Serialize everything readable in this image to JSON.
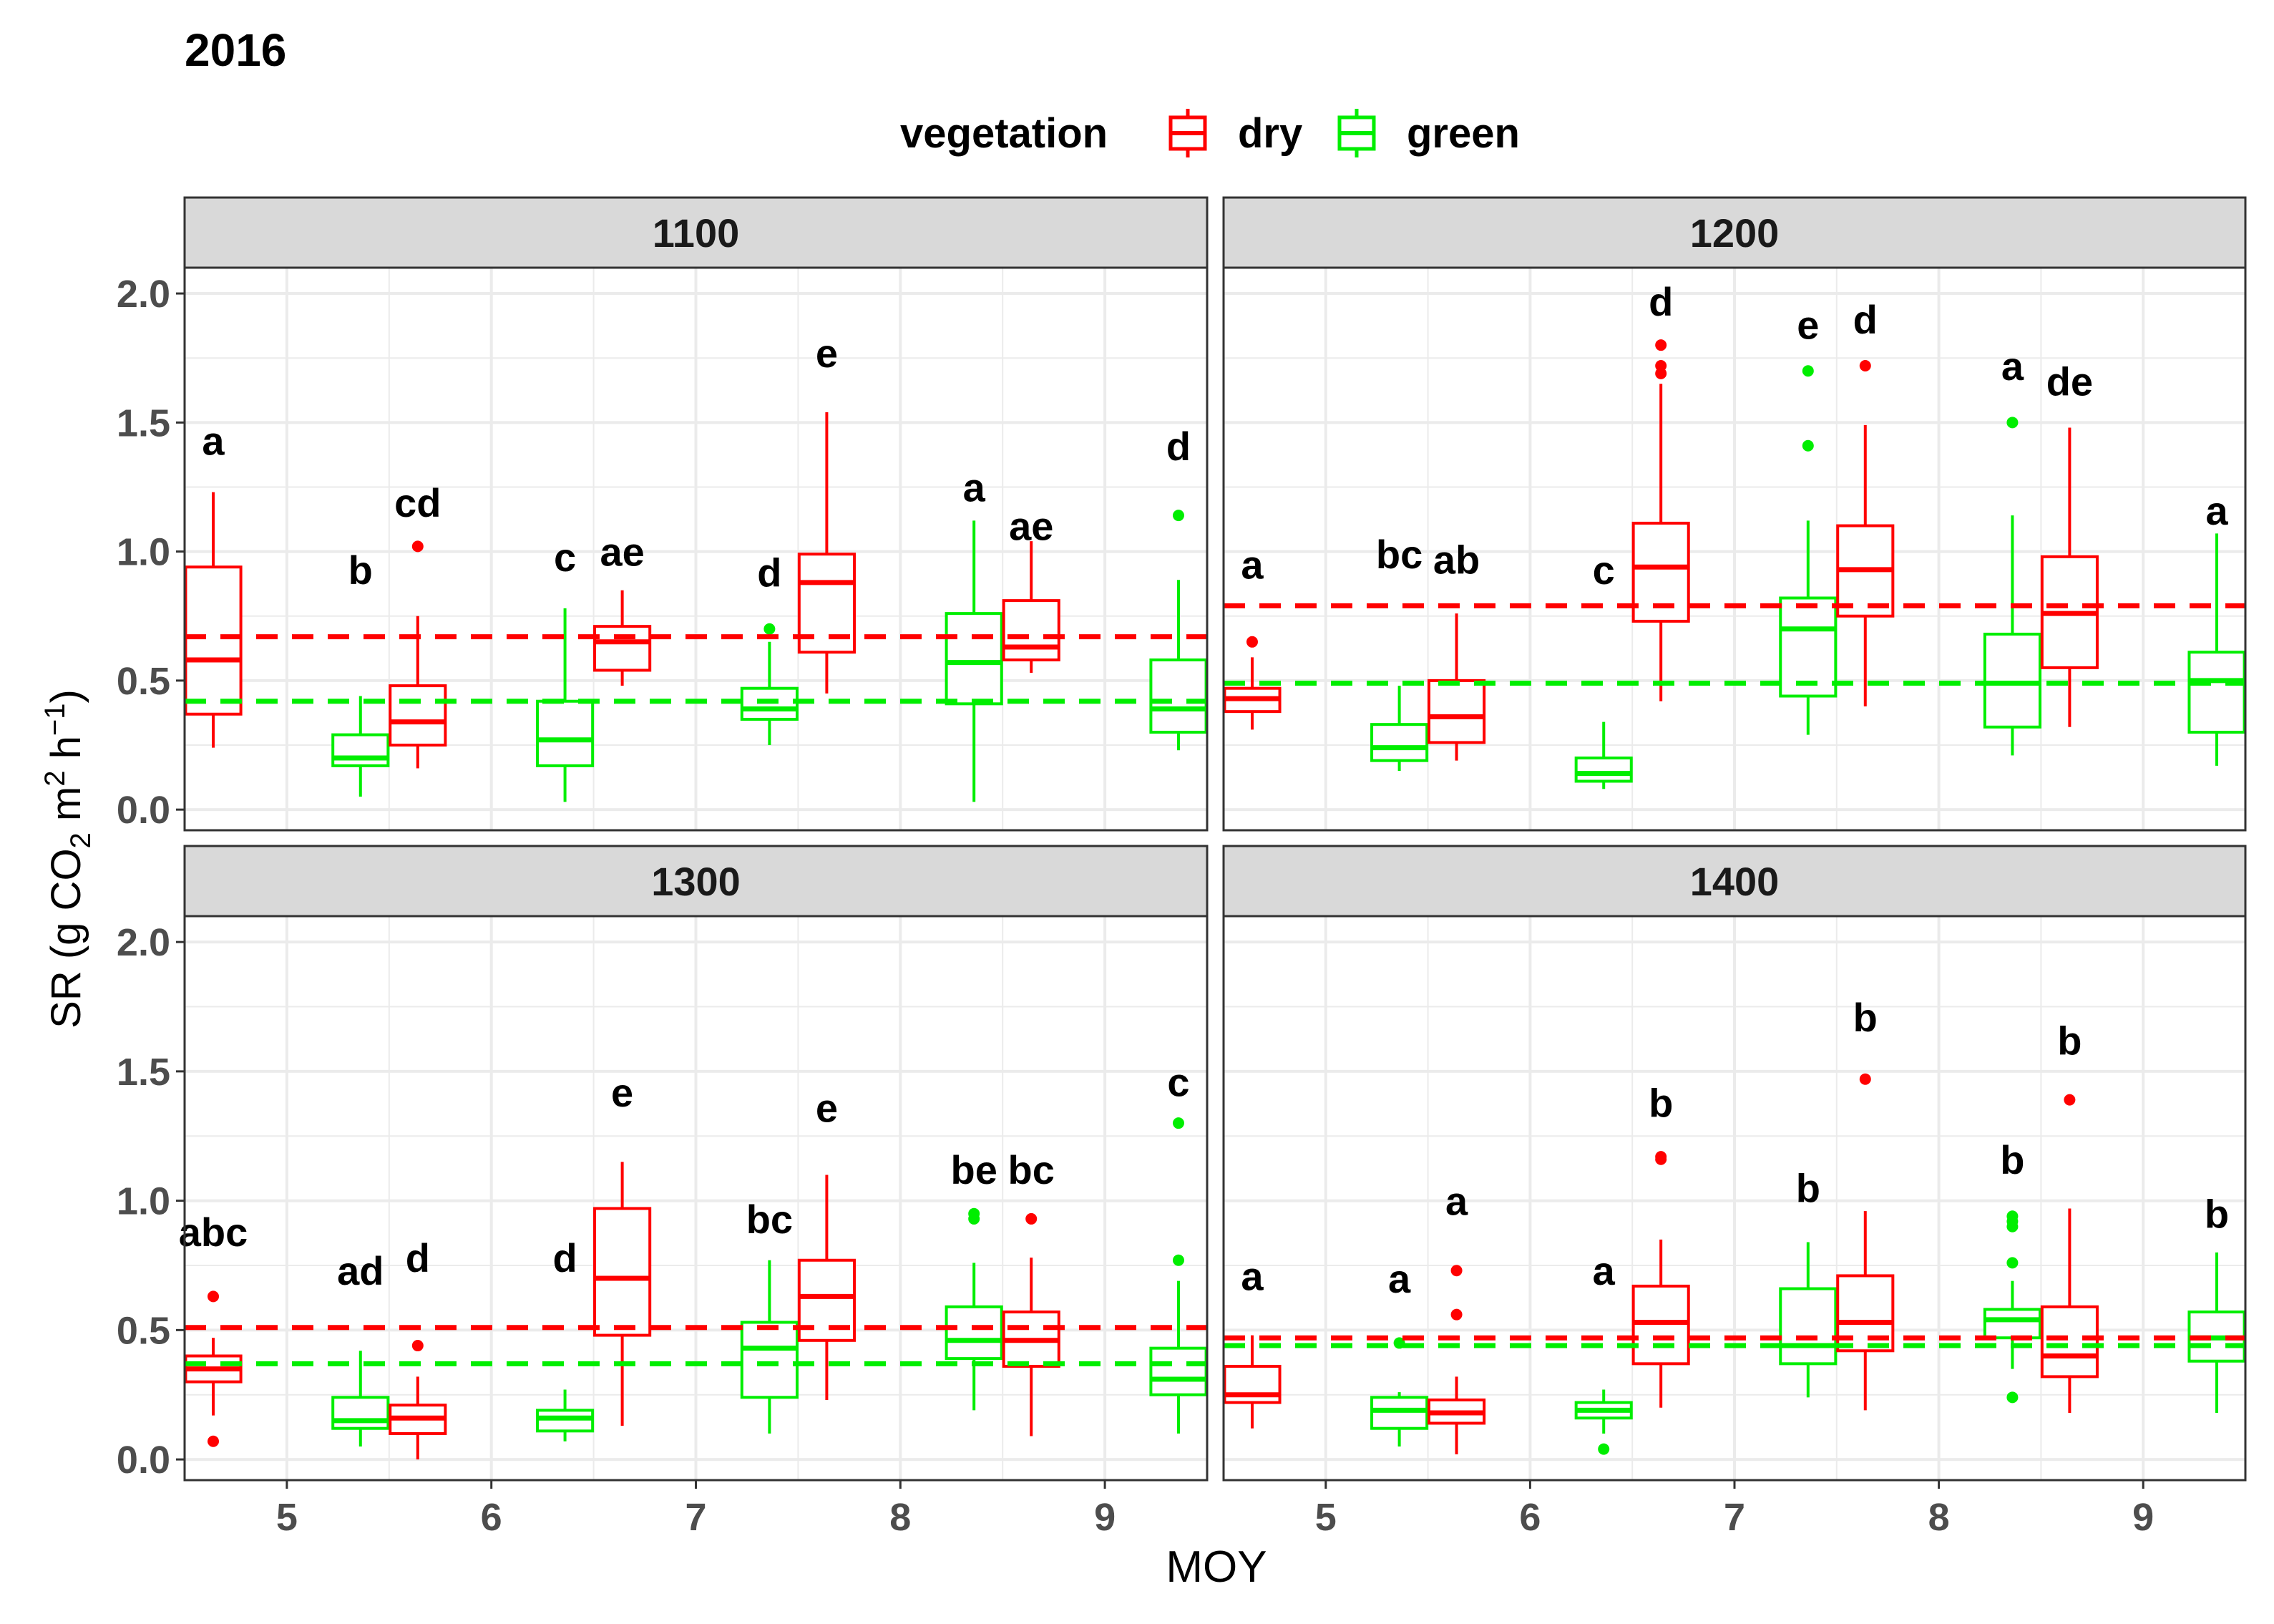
{
  "chart_data": {
    "type": "boxplot",
    "title": "2016",
    "xlabel": "MOY",
    "ylabel_parts": [
      "SR (g CO",
      "2",
      " m",
      "2",
      " h",
      "−1",
      ")"
    ],
    "ylim": [
      -0.08,
      2.1
    ],
    "y_ticks": [
      "0.0",
      "0.5",
      "1.0",
      "1.5",
      "2.0"
    ],
    "y_tick_values": [
      0,
      0.5,
      1.0,
      1.5,
      2.0
    ],
    "x_categories": [
      "5",
      "6",
      "7",
      "8",
      "9"
    ],
    "legend": {
      "title": "vegetation",
      "items": [
        {
          "label": "dry",
          "color": "#ff0000"
        },
        {
          "label": "green",
          "color": "#00ee00"
        }
      ]
    },
    "colors": {
      "dry": "#ff0000",
      "green": "#00ee00",
      "strip": "#d9d9d9",
      "grid": "#ebebeb"
    },
    "panels": [
      {
        "label": "1100",
        "ref_lines": {
          "dry": 0.67,
          "green": 0.42
        },
        "boxes": [
          {
            "moy": "5",
            "veg": "dry",
            "min": 0.24,
            "q1": 0.37,
            "med": 0.58,
            "q3": 0.94,
            "max": 1.23,
            "outliers": [],
            "letter": "a",
            "letter_y": 1.43
          },
          {
            "moy": "5",
            "veg": "green",
            "min": 0.05,
            "q1": 0.17,
            "med": 0.2,
            "q3": 0.29,
            "max": 0.44,
            "outliers": [],
            "letter": "b",
            "letter_y": 0.93
          },
          {
            "moy": "6",
            "veg": "dry",
            "min": 0.16,
            "q1": 0.25,
            "med": 0.34,
            "q3": 0.48,
            "max": 0.75,
            "outliers": [
              1.02
            ],
            "letter": "cd",
            "letter_y": 1.19
          },
          {
            "moy": "6",
            "veg": "green",
            "min": 0.03,
            "q1": 0.17,
            "med": 0.27,
            "q3": 0.42,
            "max": 0.78,
            "outliers": [],
            "letter": "c",
            "letter_y": 0.98
          },
          {
            "moy": "7",
            "veg": "dry",
            "min": 0.48,
            "q1": 0.54,
            "med": 0.65,
            "q3": 0.71,
            "max": 0.85,
            "outliers": [],
            "letter": "ae",
            "letter_y": 1.0
          },
          {
            "moy": "7",
            "veg": "green",
            "min": 0.25,
            "q1": 0.35,
            "med": 0.39,
            "q3": 0.47,
            "max": 0.65,
            "outliers": [
              0.7
            ],
            "letter": "d",
            "letter_y": 0.92
          },
          {
            "moy": "8",
            "veg": "dry",
            "min": 0.45,
            "q1": 0.61,
            "med": 0.88,
            "q3": 0.99,
            "max": 1.54,
            "outliers": [],
            "letter": "e",
            "letter_y": 1.77
          },
          {
            "moy": "8",
            "veg": "green",
            "min": 0.03,
            "q1": 0.41,
            "med": 0.57,
            "q3": 0.76,
            "max": 1.12,
            "outliers": [],
            "letter": "a",
            "letter_y": 1.25
          },
          {
            "moy": "9",
            "veg": "dry",
            "min": 0.53,
            "q1": 0.58,
            "med": 0.63,
            "q3": 0.81,
            "max": 1.04,
            "outliers": [],
            "letter": "ae",
            "letter_y": 1.1
          },
          {
            "moy": "9",
            "veg": "green",
            "min": 0.23,
            "q1": 0.3,
            "med": 0.39,
            "q3": 0.58,
            "max": 0.89,
            "outliers": [
              1.14
            ],
            "letter": "d",
            "letter_y": 1.41
          }
        ]
      },
      {
        "label": "1200",
        "ref_lines": {
          "dry": 0.79,
          "green": 0.49
        },
        "boxes": [
          {
            "moy": "5",
            "veg": "dry",
            "min": 0.31,
            "q1": 0.38,
            "med": 0.43,
            "q3": 0.47,
            "max": 0.59,
            "outliers": [
              0.65
            ],
            "letter": "a",
            "letter_y": 0.95
          },
          {
            "moy": "5",
            "veg": "green",
            "min": 0.15,
            "q1": 0.19,
            "med": 0.24,
            "q3": 0.33,
            "max": 0.48,
            "outliers": [],
            "letter": "bc",
            "letter_y": 0.99
          },
          {
            "moy": "6",
            "veg": "dry",
            "min": 0.19,
            "q1": 0.26,
            "med": 0.36,
            "q3": 0.5,
            "max": 0.76,
            "outliers": [],
            "letter": "ab",
            "letter_y": 0.97
          },
          {
            "moy": "6",
            "veg": "green",
            "min": 0.08,
            "q1": 0.11,
            "med": 0.14,
            "q3": 0.2,
            "max": 0.34,
            "outliers": [],
            "letter": "c",
            "letter_y": 0.93
          },
          {
            "moy": "7",
            "veg": "dry",
            "min": 0.42,
            "q1": 0.73,
            "med": 0.94,
            "q3": 1.11,
            "max": 1.65,
            "outliers": [
              1.69,
              1.72,
              1.8
            ],
            "letter": "d",
            "letter_y": 1.97
          },
          {
            "moy": "7",
            "veg": "green",
            "min": 0.29,
            "q1": 0.44,
            "med": 0.7,
            "q3": 0.82,
            "max": 1.12,
            "outliers": [
              1.41,
              1.7
            ],
            "letter": "e",
            "letter_y": 1.88
          },
          {
            "moy": "8",
            "veg": "dry",
            "min": 0.4,
            "q1": 0.75,
            "med": 0.93,
            "q3": 1.1,
            "max": 1.49,
            "outliers": [
              1.72
            ],
            "letter": "d",
            "letter_y": 1.9
          },
          {
            "moy": "8",
            "veg": "green",
            "min": 0.21,
            "q1": 0.32,
            "med": 0.49,
            "q3": 0.68,
            "max": 1.14,
            "outliers": [
              1.5
            ],
            "letter": "a",
            "letter_y": 1.72
          },
          {
            "moy": "9",
            "veg": "dry",
            "min": 0.32,
            "q1": 0.55,
            "med": 0.76,
            "q3": 0.98,
            "max": 1.48,
            "outliers": [],
            "letter": "de",
            "letter_y": 1.66
          },
          {
            "moy": "9",
            "veg": "green",
            "min": 0.17,
            "q1": 0.3,
            "med": 0.5,
            "q3": 0.61,
            "max": 1.07,
            "outliers": [],
            "letter": "a",
            "letter_y": 1.16
          }
        ]
      },
      {
        "label": "1300",
        "ref_lines": {
          "dry": 0.51,
          "green": 0.37
        },
        "boxes": [
          {
            "moy": "5",
            "veg": "dry",
            "min": 0.17,
            "q1": 0.3,
            "med": 0.35,
            "q3": 0.4,
            "max": 0.47,
            "outliers": [
              0.07,
              0.63
            ],
            "letter": "abc",
            "letter_y": 0.88
          },
          {
            "moy": "5",
            "veg": "green",
            "min": 0.05,
            "q1": 0.12,
            "med": 0.15,
            "q3": 0.24,
            "max": 0.42,
            "outliers": [],
            "letter": "ad",
            "letter_y": 0.73
          },
          {
            "moy": "6",
            "veg": "dry",
            "min": 0.0,
            "q1": 0.1,
            "med": 0.16,
            "q3": 0.21,
            "max": 0.32,
            "outliers": [
              0.44
            ],
            "letter": "d",
            "letter_y": 0.78
          },
          {
            "moy": "6",
            "veg": "green",
            "min": 0.07,
            "q1": 0.11,
            "med": 0.16,
            "q3": 0.19,
            "max": 0.27,
            "outliers": [],
            "letter": "d",
            "letter_y": 0.78
          },
          {
            "moy": "7",
            "veg": "dry",
            "min": 0.13,
            "q1": 0.48,
            "med": 0.7,
            "q3": 0.97,
            "max": 1.15,
            "outliers": [],
            "letter": "e",
            "letter_y": 1.42
          },
          {
            "moy": "7",
            "veg": "green",
            "min": 0.1,
            "q1": 0.24,
            "med": 0.43,
            "q3": 0.53,
            "max": 0.77,
            "outliers": [],
            "letter": "bc",
            "letter_y": 0.93
          },
          {
            "moy": "8",
            "veg": "dry",
            "min": 0.23,
            "q1": 0.46,
            "med": 0.63,
            "q3": 0.77,
            "max": 1.1,
            "outliers": [],
            "letter": "e",
            "letter_y": 1.36
          },
          {
            "moy": "8",
            "veg": "green",
            "min": 0.19,
            "q1": 0.39,
            "med": 0.46,
            "q3": 0.59,
            "max": 0.76,
            "outliers": [
              0.93,
              0.95
            ],
            "letter": "be",
            "letter_y": 1.12
          },
          {
            "moy": "9",
            "veg": "dry",
            "min": 0.09,
            "q1": 0.36,
            "med": 0.46,
            "q3": 0.57,
            "max": 0.78,
            "outliers": [
              0.93
            ],
            "letter": "bc",
            "letter_y": 1.12
          },
          {
            "moy": "9",
            "veg": "green",
            "min": 0.1,
            "q1": 0.25,
            "med": 0.31,
            "q3": 0.43,
            "max": 0.69,
            "outliers": [
              0.77,
              1.3
            ],
            "letter": "c",
            "letter_y": 1.46
          }
        ]
      },
      {
        "label": "1400",
        "ref_lines": {
          "dry": 0.47,
          "green": 0.44
        },
        "boxes": [
          {
            "moy": "5",
            "veg": "dry",
            "min": 0.12,
            "q1": 0.22,
            "med": 0.25,
            "q3": 0.36,
            "max": 0.48,
            "outliers": [],
            "letter": "a",
            "letter_y": 0.71
          },
          {
            "moy": "5",
            "veg": "green",
            "min": 0.05,
            "q1": 0.12,
            "med": 0.19,
            "q3": 0.24,
            "max": 0.26,
            "outliers": [
              0.45
            ],
            "letter": "a",
            "letter_y": 0.7
          },
          {
            "moy": "6",
            "veg": "dry",
            "min": 0.02,
            "q1": 0.14,
            "med": 0.18,
            "q3": 0.23,
            "max": 0.32,
            "outliers": [
              0.56,
              0.73
            ],
            "letter": "a",
            "letter_y": 1.0
          },
          {
            "moy": "6",
            "veg": "green",
            "min": 0.1,
            "q1": 0.16,
            "med": 0.19,
            "q3": 0.22,
            "max": 0.27,
            "outliers": [
              0.04
            ],
            "letter": "a",
            "letter_y": 0.73
          },
          {
            "moy": "7",
            "veg": "dry",
            "min": 0.2,
            "q1": 0.37,
            "med": 0.53,
            "q3": 0.67,
            "max": 0.85,
            "outliers": [
              1.16,
              1.17
            ],
            "letter": "b",
            "letter_y": 1.38
          },
          {
            "moy": "7",
            "veg": "green",
            "min": 0.24,
            "q1": 0.37,
            "med": 0.44,
            "q3": 0.66,
            "max": 0.84,
            "outliers": [],
            "letter": "b",
            "letter_y": 1.05
          },
          {
            "moy": "8",
            "veg": "dry",
            "min": 0.19,
            "q1": 0.42,
            "med": 0.53,
            "q3": 0.71,
            "max": 0.96,
            "outliers": [
              1.47
            ],
            "letter": "b",
            "letter_y": 1.71
          },
          {
            "moy": "8",
            "veg": "green",
            "min": 0.35,
            "q1": 0.47,
            "med": 0.54,
            "q3": 0.58,
            "max": 0.69,
            "outliers": [
              0.24,
              0.76,
              0.9,
              0.92,
              0.94
            ],
            "letter": "b",
            "letter_y": 1.16
          },
          {
            "moy": "9",
            "veg": "dry",
            "min": 0.18,
            "q1": 0.32,
            "med": 0.4,
            "q3": 0.59,
            "max": 0.97,
            "outliers": [
              1.39
            ],
            "letter": "b",
            "letter_y": 1.62
          },
          {
            "moy": "9",
            "veg": "green",
            "min": 0.18,
            "q1": 0.38,
            "med": 0.47,
            "q3": 0.57,
            "max": 0.8,
            "outliers": [],
            "letter": "b",
            "letter_y": 0.95
          }
        ]
      }
    ]
  }
}
